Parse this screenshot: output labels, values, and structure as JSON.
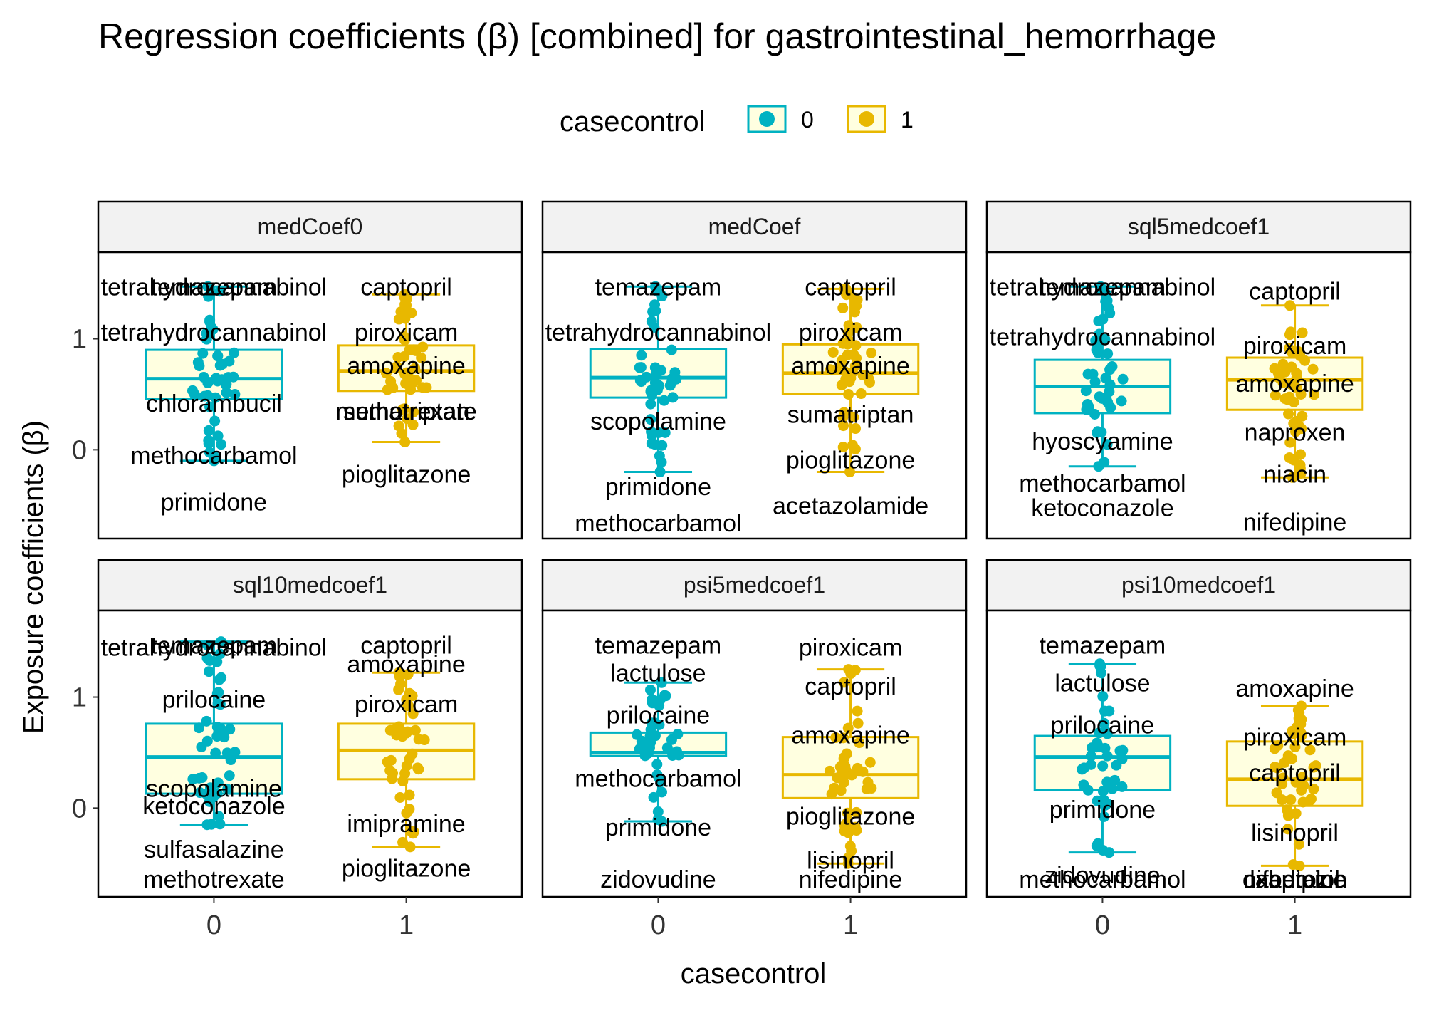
{
  "chart_data": {
    "type": "box",
    "title": "Regression coefficients (β) [combined]  for gastrointestinal_hemorrhage",
    "xlabel": "casecontrol",
    "ylabel": "Exposure coefficients (β)",
    "legend": {
      "title": "casecontrol",
      "position": "top",
      "items": [
        {
          "label": "0",
          "color": "#00B2C2"
        },
        {
          "label": "1",
          "color": "#E8B800"
        }
      ]
    },
    "colors": {
      "case0": "#00B2C2",
      "case1": "#E8B800",
      "box_fill": "#FFFFE0",
      "strip_fill": "#F2F2F2"
    },
    "x_categories": [
      "0",
      "1"
    ],
    "ylim": [
      -0.8,
      1.78
    ],
    "y_ticks": [
      0,
      1
    ],
    "grid": false,
    "facets": [
      {
        "name": "medCoef0",
        "boxes": [
          {
            "group": "0",
            "min": -0.1,
            "q1": 0.46,
            "median": 0.64,
            "q3": 0.9,
            "max": 1.47
          },
          {
            "group": "1",
            "min": 0.07,
            "q1": 0.53,
            "median": 0.71,
            "q3": 0.94,
            "max": 1.4
          }
        ],
        "labels": [
          {
            "text": "temazepam",
            "group": "0",
            "y": 1.47
          },
          {
            "text": "tetrahydrocannabinol",
            "group": "0",
            "y": 1.47
          },
          {
            "text": "tetrahydrocannabinol",
            "group": "0",
            "y": 1.06
          },
          {
            "text": "chlorambucil",
            "group": "0",
            "y": 0.42
          },
          {
            "text": "methocarbamol",
            "group": "0",
            "y": -0.05
          },
          {
            "text": "primidone",
            "group": "0",
            "y": -0.47
          },
          {
            "text": "captopril",
            "group": "1",
            "y": 1.47
          },
          {
            "text": "piroxicam",
            "group": "1",
            "y": 1.06
          },
          {
            "text": "amoxapine",
            "group": "1",
            "y": 0.76
          },
          {
            "text": "sumatriptan",
            "group": "1",
            "y": 0.35
          },
          {
            "text": "methotrexate",
            "group": "1",
            "y": 0.35
          },
          {
            "text": "pioglitazone",
            "group": "1",
            "y": -0.22
          }
        ]
      },
      {
        "name": "medCoef",
        "boxes": [
          {
            "group": "0",
            "min": -0.2,
            "q1": 0.47,
            "median": 0.65,
            "q3": 0.91,
            "max": 1.47
          },
          {
            "group": "1",
            "min": -0.2,
            "q1": 0.5,
            "median": 0.69,
            "q3": 0.95,
            "max": 1.45
          }
        ],
        "labels": [
          {
            "text": "temazepam",
            "group": "0",
            "y": 1.47
          },
          {
            "text": "tetrahydrocannabinol",
            "group": "0",
            "y": 1.06
          },
          {
            "text": "scopolamine",
            "group": "0",
            "y": 0.26
          },
          {
            "text": "primidone",
            "group": "0",
            "y": -0.33
          },
          {
            "text": "methocarbamol",
            "group": "0",
            "y": -0.66
          },
          {
            "text": "captopril",
            "group": "1",
            "y": 1.47
          },
          {
            "text": "piroxicam",
            "group": "1",
            "y": 1.06
          },
          {
            "text": "amoxapine",
            "group": "1",
            "y": 0.76
          },
          {
            "text": "sumatriptan",
            "group": "1",
            "y": 0.32
          },
          {
            "text": "pioglitazone",
            "group": "1",
            "y": -0.09
          },
          {
            "text": "acetazolamide",
            "group": "1",
            "y": -0.5
          }
        ]
      },
      {
        "name": "sql5medcoef1",
        "boxes": [
          {
            "group": "0",
            "min": -0.15,
            "q1": 0.33,
            "median": 0.57,
            "q3": 0.81,
            "max": 1.47
          },
          {
            "group": "1",
            "min": -0.25,
            "q1": 0.36,
            "median": 0.63,
            "q3": 0.83,
            "max": 1.3
          }
        ],
        "labels": [
          {
            "text": "temazepam",
            "group": "0",
            "y": 1.47
          },
          {
            "text": "tetrahydrocannabinol",
            "group": "0",
            "y": 1.47
          },
          {
            "text": "tetrahydrocannabinol",
            "group": "0",
            "y": 1.02
          },
          {
            "text": "hyoscyamine",
            "group": "0",
            "y": 0.08
          },
          {
            "text": "methocarbamol",
            "group": "0",
            "y": -0.3
          },
          {
            "text": "ketoconazole",
            "group": "0",
            "y": -0.52
          },
          {
            "text": "captopril",
            "group": "1",
            "y": 1.43
          },
          {
            "text": "piroxicam",
            "group": "1",
            "y": 0.94
          },
          {
            "text": "amoxapine",
            "group": "1",
            "y": 0.6
          },
          {
            "text": "naproxen",
            "group": "1",
            "y": 0.16
          },
          {
            "text": "niacin",
            "group": "1",
            "y": -0.22
          },
          {
            "text": "nifedipine",
            "group": "1",
            "y": -0.65
          }
        ]
      },
      {
        "name": "sql10medcoef1",
        "boxes": [
          {
            "group": "0",
            "min": -0.15,
            "q1": 0.13,
            "median": 0.46,
            "q3": 0.76,
            "max": 1.5
          },
          {
            "group": "1",
            "min": -0.35,
            "q1": 0.26,
            "median": 0.52,
            "q3": 0.76,
            "max": 1.22
          }
        ],
        "labels": [
          {
            "text": "temazepam",
            "group": "0",
            "y": 1.47
          },
          {
            "text": "tetrahydrocannabinol",
            "group": "0",
            "y": 1.45
          },
          {
            "text": "prilocaine",
            "group": "0",
            "y": 0.98
          },
          {
            "text": "scopolamine",
            "group": "0",
            "y": 0.18
          },
          {
            "text": "ketoconazole",
            "group": "0",
            "y": 0.02
          },
          {
            "text": "sulfasalazine",
            "group": "0",
            "y": -0.37
          },
          {
            "text": "methotrexate",
            "group": "0",
            "y": -0.64
          },
          {
            "text": "captopril",
            "group": "1",
            "y": 1.47
          },
          {
            "text": "amoxapine",
            "group": "1",
            "y": 1.3
          },
          {
            "text": "piroxicam",
            "group": "1",
            "y": 0.94
          },
          {
            "text": "imipramine",
            "group": "1",
            "y": -0.14
          },
          {
            "text": "pioglitazone",
            "group": "1",
            "y": -0.54
          }
        ]
      },
      {
        "name": "psi5medcoef1",
        "boxes": [
          {
            "group": "0",
            "min": -0.12,
            "q1": 0.47,
            "median": 0.5,
            "q3": 0.68,
            "max": 1.13
          },
          {
            "group": "1",
            "min": -0.5,
            "q1": 0.09,
            "median": 0.3,
            "q3": 0.64,
            "max": 1.25
          }
        ],
        "labels": [
          {
            "text": "temazepam",
            "group": "0",
            "y": 1.47
          },
          {
            "text": "lactulose",
            "group": "0",
            "y": 1.22
          },
          {
            "text": "prilocaine",
            "group": "0",
            "y": 0.84
          },
          {
            "text": "methocarbamol",
            "group": "0",
            "y": 0.27
          },
          {
            "text": "primidone",
            "group": "0",
            "y": -0.17
          },
          {
            "text": "zidovudine",
            "group": "0",
            "y": -0.64
          },
          {
            "text": "piroxicam",
            "group": "1",
            "y": 1.45
          },
          {
            "text": "captopril",
            "group": "1",
            "y": 1.1
          },
          {
            "text": "amoxapine",
            "group": "1",
            "y": 0.66
          },
          {
            "text": "pioglitazone",
            "group": "1",
            "y": -0.07
          },
          {
            "text": "lisinopril",
            "group": "1",
            "y": -0.47
          },
          {
            "text": "nifedipine",
            "group": "1",
            "y": -0.64
          }
        ]
      },
      {
        "name": "psi10medcoef1",
        "boxes": [
          {
            "group": "0",
            "min": -0.4,
            "q1": 0.16,
            "median": 0.46,
            "q3": 0.65,
            "max": 1.3
          },
          {
            "group": "1",
            "min": -0.52,
            "q1": 0.02,
            "median": 0.26,
            "q3": 0.6,
            "max": 0.92
          }
        ],
        "labels": [
          {
            "text": "temazepam",
            "group": "0",
            "y": 1.47
          },
          {
            "text": "lactulose",
            "group": "0",
            "y": 1.13
          },
          {
            "text": "prilocaine",
            "group": "0",
            "y": 0.75
          },
          {
            "text": "primidone",
            "group": "0",
            "y": -0.01
          },
          {
            "text": "zidovudine",
            "group": "0",
            "y": -0.6
          },
          {
            "text": "methocarbamol",
            "group": "0",
            "y": -0.64
          },
          {
            "text": "amoxapine",
            "group": "1",
            "y": 1.08
          },
          {
            "text": "piroxicam",
            "group": "1",
            "y": 0.64
          },
          {
            "text": "captopril",
            "group": "1",
            "y": 0.32
          },
          {
            "text": "lisinopril",
            "group": "1",
            "y": -0.22
          },
          {
            "text": "labetalol",
            "group": "1",
            "y": -0.64
          },
          {
            "text": "nifedipine",
            "group": "1",
            "y": -0.64
          },
          {
            "text": "oxaprozin",
            "group": "1",
            "y": -0.64
          }
        ]
      }
    ]
  }
}
